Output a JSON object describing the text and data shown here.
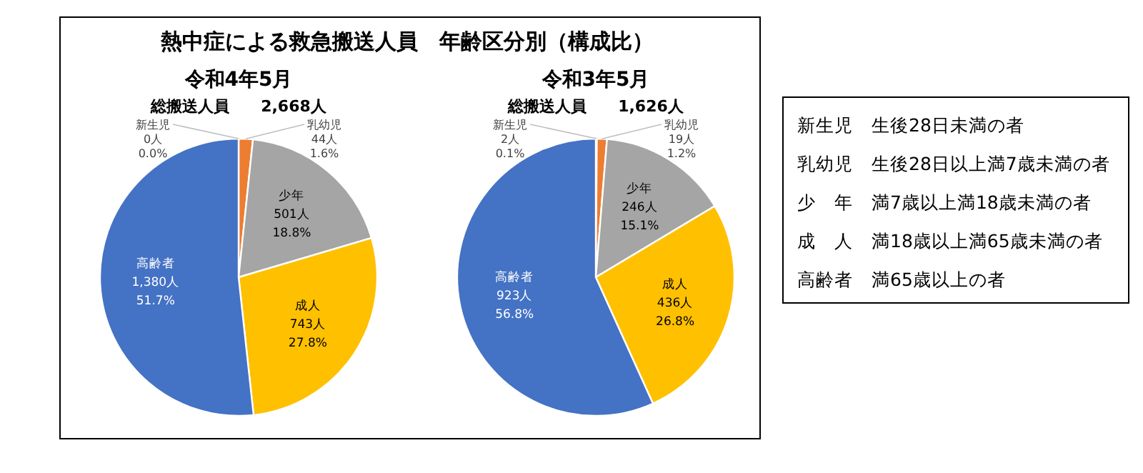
{
  "chart_data": [
    {
      "type": "pie",
      "title": "熱中症による救急搬送人員　年齢区分別（構成比）",
      "subtitle": "令和4年5月",
      "annotations": [
        "総搬送人員　　2,668人"
      ],
      "categories": [
        "新生児",
        "乳幼児",
        "少年",
        "成人",
        "高齢者"
      ],
      "values": [
        0,
        44,
        501,
        743,
        1380
      ],
      "colors": [
        "#5b9bd5",
        "#ed7d31",
        "#a5a5a5",
        "#ffc000",
        "#4472c4"
      ],
      "value_labels": [
        "0人\n0.0%",
        "44人\n1.6%",
        "501人\n18.8%",
        "743人\n27.8%",
        "1,380人\n51.7%"
      ]
    },
    {
      "type": "pie",
      "subtitle": "令和3年5月",
      "annotations": [
        "総搬送人員　　1,626人"
      ],
      "categories": [
        "新生児",
        "乳幼児",
        "少年",
        "成人",
        "高齢者"
      ],
      "values": [
        2,
        19,
        246,
        436,
        923
      ],
      "colors": [
        "#5b9bd5",
        "#ed7d31",
        "#a5a5a5",
        "#ffc000",
        "#4472c4"
      ],
      "value_labels": [
        "2人\n0.1%",
        "19人\n1.2%",
        "246人\n15.1%",
        "436人\n26.8%",
        "923人\n56.8%"
      ]
    },
    {
      "type": "other",
      "annotations": [
        "新生児　生後28日未満の者",
        "乳幼児　生後28日以上満7歳未満の者",
        "少　年　満7歳以上満18歳未満の者",
        "成　人　満18歳以上満65歳未満の者",
        "高齢者　満65歳以上の者"
      ]
    }
  ]
}
